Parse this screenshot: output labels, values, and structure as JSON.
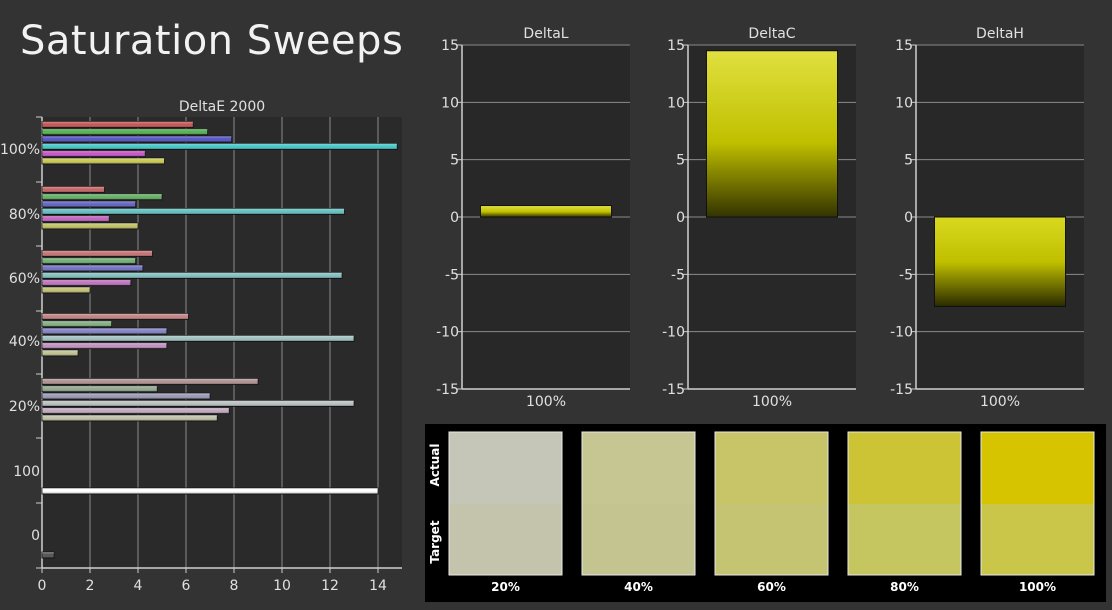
{
  "page": {
    "title": "Saturation Sweeps"
  },
  "colors": {
    "background": "#333333",
    "plot_bg": "#282828",
    "grid": "#8a8a8a",
    "delta_bar": "#c8c800",
    "swatch_panel": "#000000"
  },
  "chart_data": [
    {
      "type": "bar",
      "orientation": "horizontal",
      "title": "DeltaE 2000",
      "xlim": [
        0,
        15
      ],
      "x_ticks": [
        0,
        2,
        4,
        6,
        8,
        10,
        12,
        14
      ],
      "grid": true,
      "groups": [
        {
          "label": "100%",
          "series": [
            {
              "color": "#c85050",
              "value": 6.3
            },
            {
              "color": "#50b050",
              "value": 6.9
            },
            {
              "color": "#5050c8",
              "value": 7.9
            },
            {
              "color": "#40c8c8",
              "value": 14.8
            },
            {
              "color": "#c850c8",
              "value": 4.3
            },
            {
              "color": "#c8c850",
              "value": 5.1
            }
          ]
        },
        {
          "label": "80%",
          "series": [
            {
              "color": "#c86060",
              "value": 2.6
            },
            {
              "color": "#60b060",
              "value": 5.0
            },
            {
              "color": "#6060c8",
              "value": 3.9
            },
            {
              "color": "#60c0c0",
              "value": 12.6
            },
            {
              "color": "#c060c0",
              "value": 2.8
            },
            {
              "color": "#c0c060",
              "value": 4.0
            }
          ]
        },
        {
          "label": "60%",
          "series": [
            {
              "color": "#c87070",
              "value": 4.6
            },
            {
              "color": "#70b070",
              "value": 3.9
            },
            {
              "color": "#7070c8",
              "value": 4.2
            },
            {
              "color": "#80c0c0",
              "value": 12.5
            },
            {
              "color": "#c070c0",
              "value": 3.7
            },
            {
              "color": "#c0c070",
              "value": 2.0
            }
          ]
        },
        {
          "label": "40%",
          "series": [
            {
              "color": "#c08080",
              "value": 6.1
            },
            {
              "color": "#80b080",
              "value": 2.9
            },
            {
              "color": "#8080c8",
              "value": 5.2
            },
            {
              "color": "#a0c0c0",
              "value": 13.0
            },
            {
              "color": "#c090c0",
              "value": 5.2
            },
            {
              "color": "#c0c090",
              "value": 1.5
            }
          ]
        },
        {
          "label": "20%",
          "series": [
            {
              "color": "#b09090",
              "value": 9.0
            },
            {
              "color": "#90a890",
              "value": 4.8
            },
            {
              "color": "#9898b8",
              "value": 7.0
            },
            {
              "color": "#b8c0c0",
              "value": 13.0
            },
            {
              "color": "#c0a8c0",
              "value": 7.8
            },
            {
              "color": "#c0c0a8",
              "value": 7.3
            }
          ]
        },
        {
          "label": "100",
          "series": [
            {
              "color": "#ffffff",
              "value": 14.0
            }
          ]
        },
        {
          "label": "0",
          "series": [
            {
              "color": "#505050",
              "value": 0.5
            }
          ]
        }
      ]
    },
    {
      "type": "bar",
      "title": "DeltaL",
      "categories": [
        "100%"
      ],
      "values": [
        1.0
      ],
      "ylim": [
        -15,
        15
      ],
      "y_ticks": [
        -15,
        -10,
        -5,
        0,
        5,
        10,
        15
      ],
      "grid": true
    },
    {
      "type": "bar",
      "title": "DeltaC",
      "categories": [
        "100%"
      ],
      "values": [
        14.5
      ],
      "ylim": [
        -15,
        15
      ],
      "y_ticks": [
        -15,
        -10,
        -5,
        0,
        5,
        10,
        15
      ],
      "grid": true
    },
    {
      "type": "bar",
      "title": "DeltaH",
      "categories": [
        "100%"
      ],
      "values": [
        -7.8
      ],
      "ylim": [
        -15,
        15
      ],
      "y_ticks": [
        -15,
        -10,
        -5,
        0,
        5,
        10,
        15
      ],
      "grid": true
    }
  ],
  "swatches": {
    "row_labels": [
      "Actual",
      "Target"
    ],
    "items": [
      {
        "label": "20%",
        "actual": "#c6c6b8",
        "target": "#c4c4ac"
      },
      {
        "label": "40%",
        "actual": "#c6c692",
        "target": "#c4c490"
      },
      {
        "label": "60%",
        "actual": "#c8c468",
        "target": "#c4c472"
      },
      {
        "label": "80%",
        "actual": "#ccc434",
        "target": "#c6c660"
      },
      {
        "label": "100%",
        "actual": "#d6c400",
        "target": "#cac64a"
      }
    ]
  }
}
